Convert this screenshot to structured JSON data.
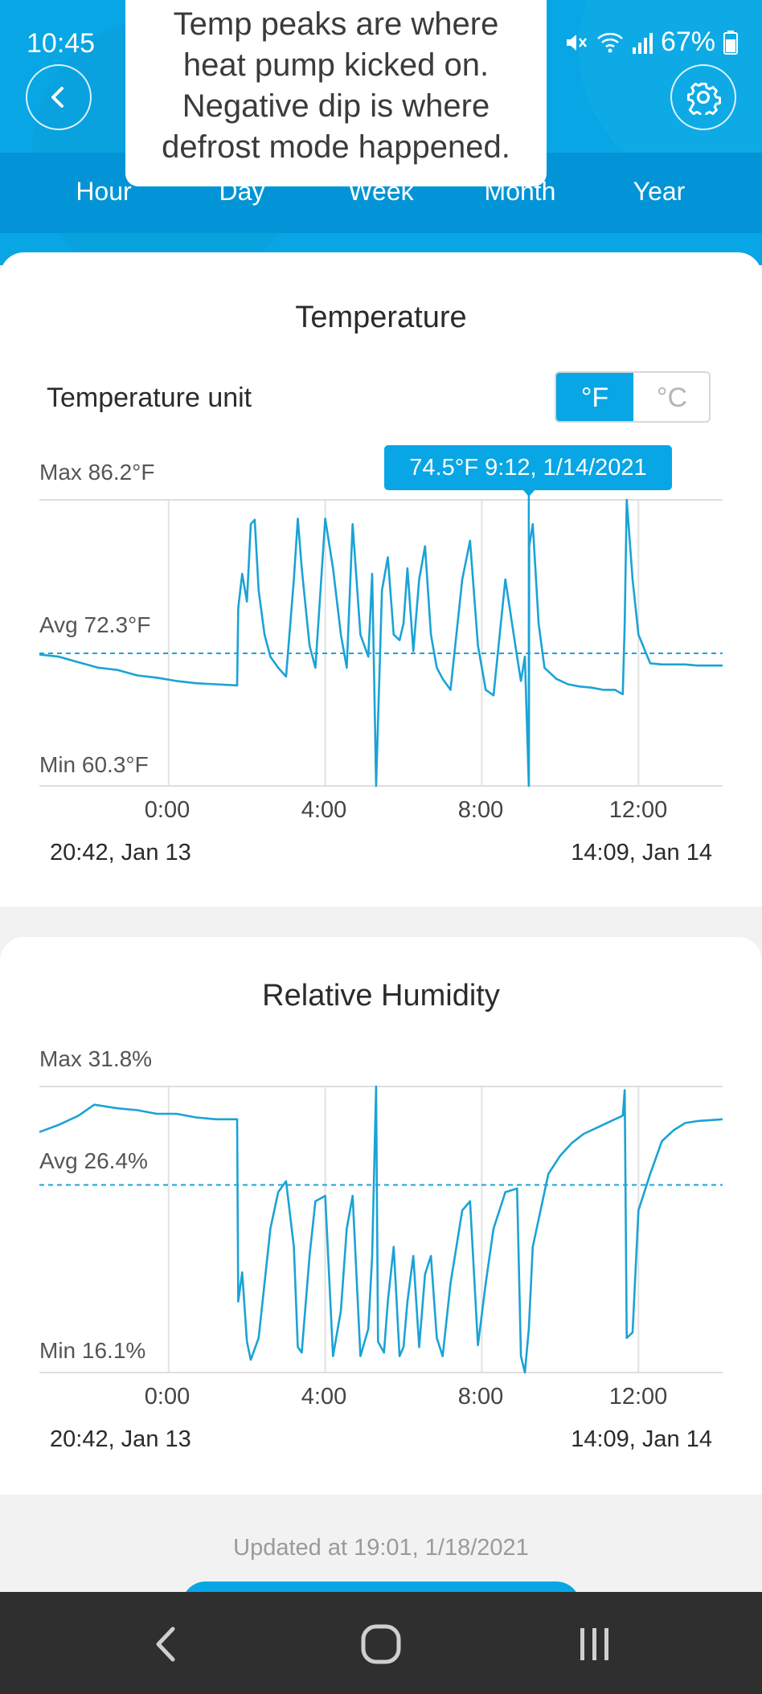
{
  "status_bar": {
    "time": "10:45",
    "battery": "67%"
  },
  "annotation": {
    "lines": [
      "Temp peaks are where",
      "heat pump kicked on.",
      "Negative dip is where",
      "defrost mode happened."
    ]
  },
  "tabs": [
    {
      "label": "Hour"
    },
    {
      "label": "Day"
    },
    {
      "label": "Week"
    },
    {
      "label": "Month"
    },
    {
      "label": "Year"
    }
  ],
  "temperature": {
    "title": "Temperature",
    "unit_label": "Temperature unit",
    "unit_f": "°F",
    "unit_c": "°C",
    "selected_unit": "°F",
    "max_label": "Max 86.2°F",
    "avg_label": "Avg 72.3°F",
    "min_label": "Min 60.3°F",
    "tooltip": "74.5°F 9:12,  1/14/2021",
    "range_start": "20:42,  Jan 13",
    "range_end": "14:09,  Jan 14"
  },
  "humidity": {
    "title": "Relative Humidity",
    "max_label": "Max 31.8%",
    "avg_label": "Avg 26.4%",
    "min_label": "Min 16.1%",
    "range_start": "20:42,  Jan 13",
    "range_end": "14:09,  Jan 14"
  },
  "footer": {
    "updated": "Updated at 19:01,  1/18/2021"
  },
  "colors": {
    "accent": "#08a6e4",
    "line": "#1aa3d6",
    "header_dark": "#0294d6"
  },
  "chart_data": [
    {
      "type": "line",
      "title": "Temperature",
      "ylabel": "",
      "xlabel": "",
      "x_ticks": [
        "0:00",
        "4:00",
        "8:00",
        "12:00"
      ],
      "x_range_hours": [
        -3.3,
        14.15
      ],
      "ylim": [
        60.3,
        86.2
      ],
      "avg": 72.3,
      "grid": true,
      "series": [
        {
          "x": [
            -3.3,
            -2.8,
            -2.3,
            -1.8,
            -1.3,
            -0.8,
            -0.3,
            0.2,
            0.7,
            1.2,
            1.75,
            1.78,
            1.88,
            2.0,
            2.1,
            2.2,
            2.3,
            2.45,
            2.6,
            2.8,
            3.0,
            3.2,
            3.3,
            3.4,
            3.6,
            3.75,
            4.0,
            4.2,
            4.4,
            4.55,
            4.7,
            4.9,
            5.1,
            5.2,
            5.25,
            5.3,
            5.45,
            5.6,
            5.75,
            5.9,
            6.0,
            6.1,
            6.25,
            6.4,
            6.55,
            6.7,
            6.85,
            7.0,
            7.2,
            7.5,
            7.7,
            7.9,
            8.1,
            8.3,
            8.6,
            8.9,
            9.0,
            9.1,
            9.2,
            9.21,
            9.3,
            9.45,
            9.6,
            9.9,
            10.2,
            10.5,
            10.8,
            11.1,
            11.4,
            11.6,
            11.65,
            11.7,
            11.85,
            12.0,
            12.3,
            12.6,
            12.9,
            13.2,
            13.5,
            14.15
          ],
          "values": [
            72.2,
            72.0,
            71.5,
            71.0,
            70.8,
            70.3,
            70.1,
            69.8,
            69.6,
            69.5,
            69.4,
            76.4,
            79.5,
            77.0,
            84.0,
            84.4,
            78.0,
            74.0,
            72.0,
            71.0,
            70.2,
            79.0,
            84.5,
            80.0,
            73.0,
            71.0,
            84.5,
            80.0,
            74.0,
            71.0,
            84.0,
            74.0,
            72.0,
            79.5,
            70.0,
            60.3,
            78.0,
            81.0,
            74.0,
            73.5,
            75.0,
            80.0,
            72.5,
            79.0,
            82.0,
            74.0,
            71.0,
            70.0,
            69.0,
            79.0,
            82.5,
            73.0,
            69.0,
            68.5,
            79.0,
            72.0,
            69.8,
            72.0,
            60.3,
            82.0,
            84.0,
            75.0,
            71.0,
            70.0,
            69.5,
            69.3,
            69.2,
            69.0,
            69.0,
            68.6,
            75.0,
            86.2,
            79.0,
            74.0,
            71.4,
            71.3,
            71.3,
            71.3,
            71.2,
            71.2
          ]
        }
      ]
    },
    {
      "type": "line",
      "title": "Relative Humidity",
      "ylabel": "",
      "xlabel": "",
      "x_ticks": [
        "0:00",
        "4:00",
        "8:00",
        "12:00"
      ],
      "x_range_hours": [
        -3.3,
        14.15
      ],
      "ylim": [
        16.1,
        31.8
      ],
      "avg": 26.4,
      "grid": true,
      "series": [
        {
          "x": [
            -3.3,
            -2.8,
            -2.3,
            -1.9,
            -1.3,
            -0.8,
            -0.3,
            0.2,
            0.7,
            1.2,
            1.75,
            1.78,
            1.88,
            2.0,
            2.1,
            2.3,
            2.6,
            2.8,
            3.0,
            3.2,
            3.3,
            3.4,
            3.6,
            3.75,
            4.0,
            4.2,
            4.4,
            4.55,
            4.7,
            4.9,
            5.1,
            5.2,
            5.3,
            5.35,
            5.5,
            5.6,
            5.75,
            5.9,
            6.0,
            6.1,
            6.25,
            6.4,
            6.55,
            6.7,
            6.85,
            7.0,
            7.2,
            7.5,
            7.7,
            7.9,
            8.1,
            8.3,
            8.6,
            8.9,
            9.0,
            9.1,
            9.2,
            9.3,
            9.5,
            9.7,
            10.0,
            10.3,
            10.6,
            11.0,
            11.4,
            11.6,
            11.65,
            11.7,
            11.85,
            12.0,
            12.3,
            12.6,
            12.9,
            13.2,
            13.5,
            14.15
          ],
          "values": [
            29.3,
            29.7,
            30.2,
            30.8,
            30.6,
            30.5,
            30.3,
            30.3,
            30.1,
            30.0,
            30.0,
            20.0,
            21.6,
            17.8,
            16.8,
            18.0,
            24.0,
            26.0,
            26.6,
            23.0,
            17.5,
            17.2,
            22.5,
            25.5,
            25.8,
            17.0,
            19.5,
            24.0,
            25.8,
            17.0,
            18.5,
            22.5,
            31.8,
            17.8,
            17.2,
            20.0,
            23.0,
            17.0,
            17.5,
            20.0,
            22.5,
            17.5,
            21.5,
            22.5,
            18.0,
            17.0,
            21.0,
            25.0,
            25.5,
            17.6,
            21.0,
            24.0,
            26.0,
            26.2,
            17.0,
            16.1,
            18.5,
            23.0,
            25.0,
            27.0,
            28.0,
            28.7,
            29.2,
            29.6,
            30.0,
            30.2,
            31.6,
            18.0,
            18.3,
            25.0,
            27.0,
            28.8,
            29.4,
            29.8,
            29.9,
            30.0
          ]
        }
      ]
    }
  ]
}
